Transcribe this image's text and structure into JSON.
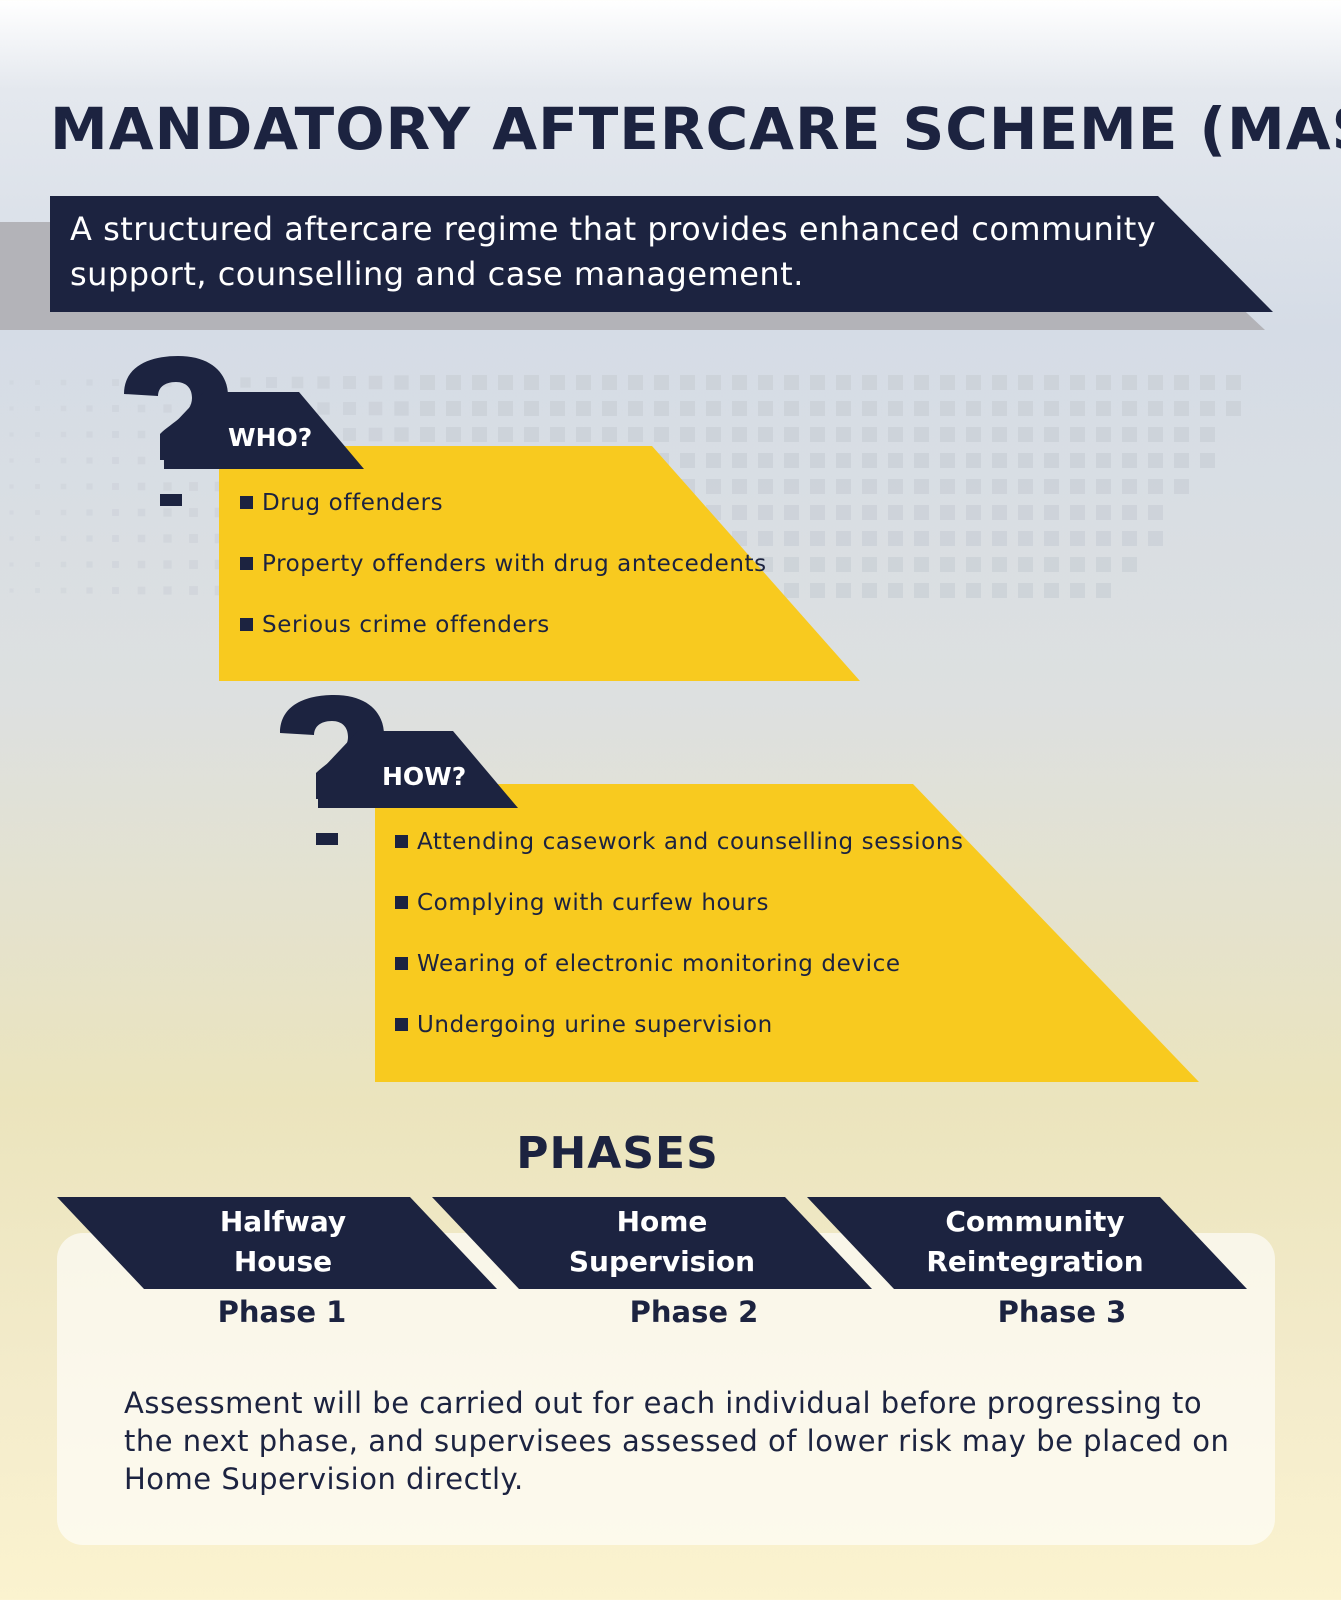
{
  "title": "MANDATORY AFTERCARE SCHEME (MAS)",
  "intro": "A structured aftercare regime that provides enhanced community support, counselling and case management.",
  "who": {
    "label": "WHO?",
    "items": [
      "Drug offenders",
      "Property offenders with drug antecedents",
      "Serious crime offenders"
    ]
  },
  "how": {
    "label": "HOW?",
    "items": [
      "Attending casework and counselling sessions",
      "Complying with curfew hours",
      "Wearing of electronic monitoring device",
      "Undergoing urine supervision"
    ]
  },
  "phases": {
    "title": "PHASES",
    "items": [
      {
        "name_line1": "Halfway",
        "name_line2": "House",
        "label": "Phase 1"
      },
      {
        "name_line1": "Home",
        "name_line2": "Supervision",
        "label": "Phase 2"
      },
      {
        "name_line1": "Community",
        "name_line2": "Reintegration",
        "label": "Phase 3"
      }
    ],
    "note": "Assessment will be carried out for each individual before progressing to the next phase, and supervisees assessed of lower risk may be placed on Home Supervision directly."
  },
  "colors": {
    "navy": "#1c2340",
    "yellow": "#f8ca1f",
    "grey": "#b3b3b8"
  },
  "icons": [
    "question-mark-icon",
    "square-bullet-icon"
  ]
}
